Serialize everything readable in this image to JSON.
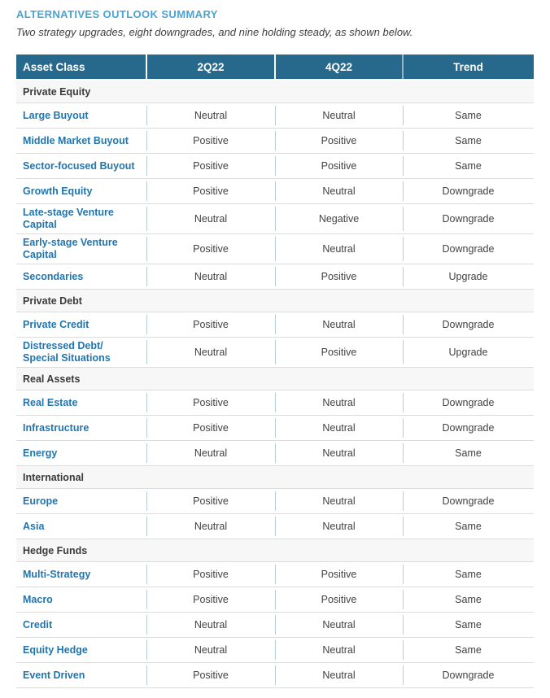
{
  "header": {
    "title": "ALTERNATIVES OUTLOOK SUMMARY",
    "subtitle": "Two strategy upgrades, eight downgrades, and nine holding steady, as shown below."
  },
  "table": {
    "columns": [
      "Asset Class",
      "2Q22",
      "4Q22",
      "Trend"
    ],
    "sections": [
      {
        "label": "Private Equity",
        "rows": [
          {
            "asset": "Large Buyout",
            "q2_2022": "Neutral",
            "q4_2022": "Neutral",
            "trend": "Same"
          },
          {
            "asset": "Middle Market Buyout",
            "q2_2022": "Positive",
            "q4_2022": "Positive",
            "trend": "Same"
          },
          {
            "asset": "Sector-focused Buyout",
            "q2_2022": "Positive",
            "q4_2022": "Positive",
            "trend": "Same"
          },
          {
            "asset": "Growth Equity",
            "q2_2022": "Positive",
            "q4_2022": "Neutral",
            "trend": "Downgrade"
          },
          {
            "asset": "Late-stage Venture Capital",
            "q2_2022": "Neutral",
            "q4_2022": "Negative",
            "trend": "Downgrade"
          },
          {
            "asset": "Early-stage Venture Capital",
            "q2_2022": "Positive",
            "q4_2022": "Neutral",
            "trend": "Downgrade"
          },
          {
            "asset": "Secondaries",
            "q2_2022": "Neutral",
            "q4_2022": "Positive",
            "trend": "Upgrade"
          }
        ]
      },
      {
        "label": "Private Debt",
        "rows": [
          {
            "asset": "Private Credit",
            "q2_2022": "Positive",
            "q4_2022": "Neutral",
            "trend": "Downgrade"
          },
          {
            "asset": "Distressed Debt/\nSpecial Situations",
            "q2_2022": "Neutral",
            "q4_2022": "Positive",
            "trend": "Upgrade"
          }
        ]
      },
      {
        "label": "Real Assets",
        "rows": [
          {
            "asset": "Real Estate",
            "q2_2022": "Positive",
            "q4_2022": "Neutral",
            "trend": "Downgrade"
          },
          {
            "asset": "Infrastructure",
            "q2_2022": "Positive",
            "q4_2022": "Neutral",
            "trend": "Downgrade"
          },
          {
            "asset": "Energy",
            "q2_2022": "Neutral",
            "q4_2022": "Neutral",
            "trend": "Same"
          }
        ]
      },
      {
        "label": "International",
        "rows": [
          {
            "asset": "Europe",
            "q2_2022": "Positive",
            "q4_2022": "Neutral",
            "trend": "Downgrade"
          },
          {
            "asset": "Asia",
            "q2_2022": "Neutral",
            "q4_2022": "Neutral",
            "trend": "Same"
          }
        ]
      },
      {
        "label": "Hedge Funds",
        "rows": [
          {
            "asset": "Multi-Strategy",
            "q2_2022": "Positive",
            "q4_2022": "Positive",
            "trend": "Same"
          },
          {
            "asset": "Macro",
            "q2_2022": "Positive",
            "q4_2022": "Positive",
            "trend": "Same"
          },
          {
            "asset": "Credit",
            "q2_2022": "Neutral",
            "q4_2022": "Neutral",
            "trend": "Same"
          },
          {
            "asset": "Equity Hedge",
            "q2_2022": "Neutral",
            "q4_2022": "Neutral",
            "trend": "Same"
          },
          {
            "asset": "Event Driven",
            "q2_2022": "Positive",
            "q4_2022": "Neutral",
            "trend": "Downgrade"
          }
        ]
      }
    ]
  },
  "colors": {
    "accent_blue": "#4aa3d4",
    "header_bg": "#26698c",
    "header_text": "#ffffff",
    "asset_link_blue": "#2176b0",
    "section_bg": "#f7f7f7",
    "row_border": "#dcdcdc",
    "cell_divider": "#b9cedb",
    "body_text": "#424242"
  }
}
